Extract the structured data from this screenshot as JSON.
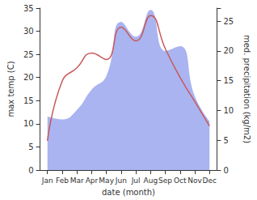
{
  "chart_data": {
    "type": "line",
    "x_label": "date (month)",
    "y_label": "max temp (C)",
    "y2_label": "med. precipitation (kg/m2)",
    "categories": [
      "Jan",
      "Feb",
      "Mar",
      "Apr",
      "May",
      "Jun",
      "Jul",
      "Aug",
      "Sep",
      "Oct",
      "Nov",
      "Dec"
    ],
    "series": [
      {
        "name": "med. precipitation",
        "type": "area",
        "axis": "y2",
        "color": "#aab4f0",
        "values": [
          9.0,
          8.5,
          10.1,
          13.5,
          15.8,
          24.9,
          22.4,
          26.9,
          20.0,
          20.8,
          12.4,
          8.2
        ]
      },
      {
        "name": "max temp",
        "type": "line",
        "color": "#c8585a",
        "values": [
          6.3,
          19.2,
          22.1,
          25.3,
          23.9,
          30.9,
          27.9,
          33.4,
          26.2,
          20.0,
          14.8,
          9.5
        ]
      }
    ],
    "ylim": [
      0,
      35
    ],
    "yticks": [
      0,
      5,
      10,
      15,
      20,
      25,
      30,
      35
    ],
    "y2lim": [
      0,
      27.2
    ],
    "y2ticks": [
      0,
      5,
      10,
      15,
      20,
      25
    ],
    "grid": false
  }
}
